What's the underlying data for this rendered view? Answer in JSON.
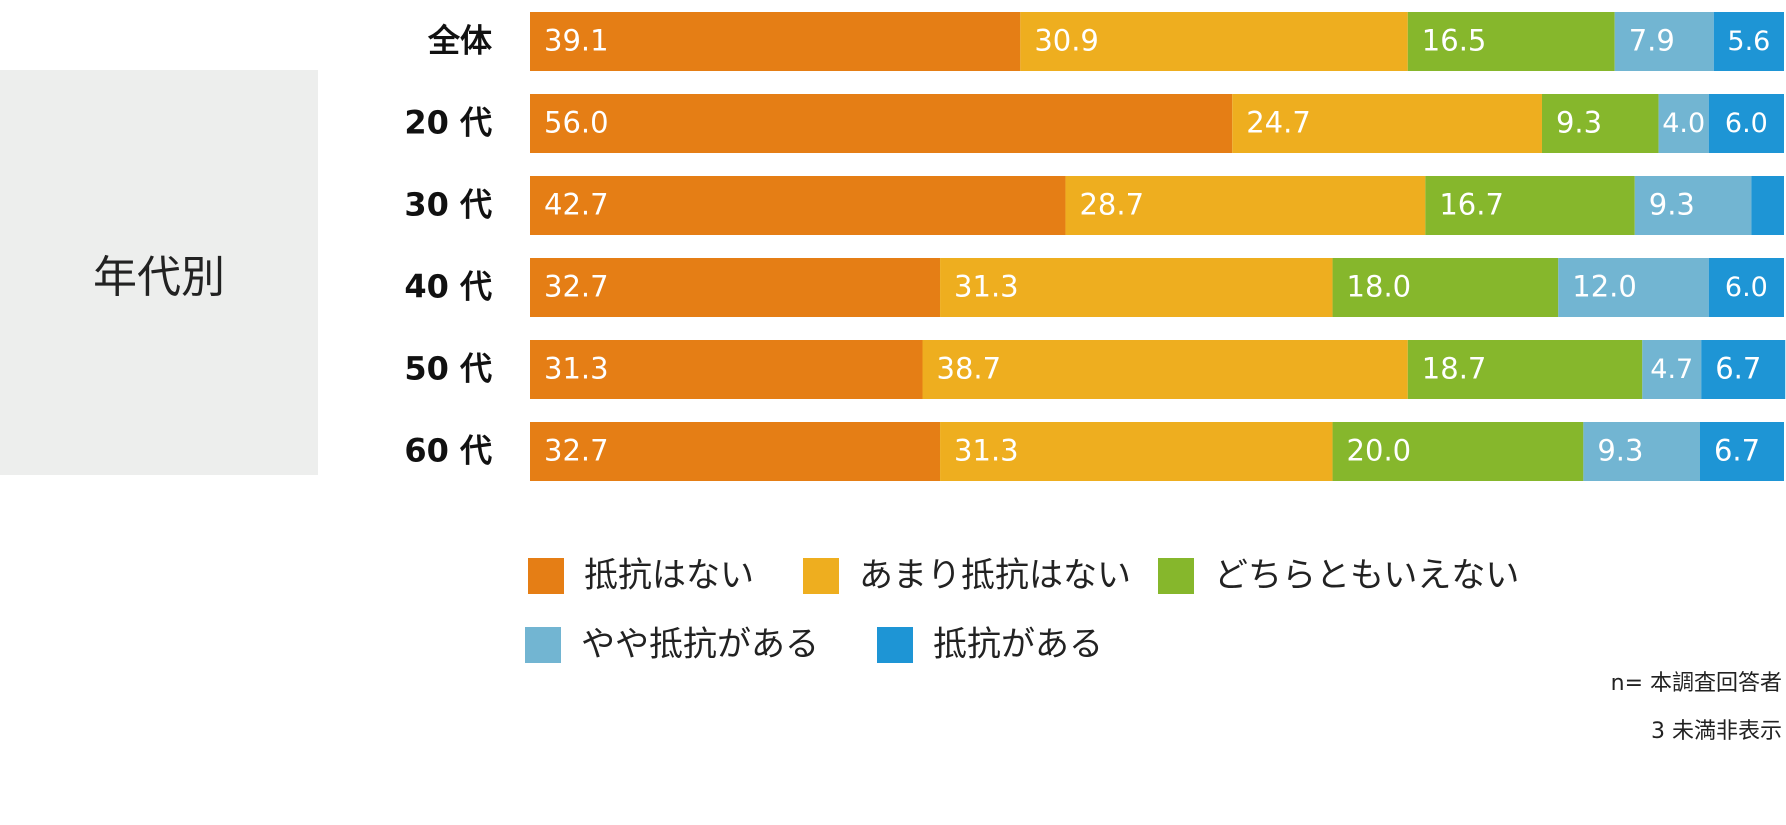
{
  "side_panel": {
    "label": "年代別"
  },
  "notes": {
    "line1": "n= 本調査回答者",
    "line2": "3 未満非表示"
  },
  "chart_data": {
    "type": "bar",
    "orientation": "horizontal",
    "stacked": true,
    "unit": "%",
    "categories": [
      "全体",
      "20 代",
      "30 代",
      "40 代",
      "50 代",
      "60 代"
    ],
    "xlim": [
      0,
      100
    ],
    "grid": false,
    "legend_position": "bottom",
    "series": [
      {
        "name": "抵抗はない",
        "color": "#e57e15",
        "values": [
          39.1,
          56.0,
          42.7,
          32.7,
          31.3,
          32.7
        ],
        "labels": [
          "39.1",
          "56.0",
          "42.7",
          "32.7",
          "31.3",
          "32.7"
        ]
      },
      {
        "name": "あまり抵抗はない",
        "color": "#eeae1f",
        "values": [
          30.9,
          24.7,
          28.7,
          31.3,
          38.7,
          31.3
        ],
        "labels": [
          "30.9",
          "24.7",
          "28.7",
          "31.3",
          "38.7",
          "31.3"
        ]
      },
      {
        "name": "どちらともいえない",
        "color": "#86b72c",
        "values": [
          16.5,
          9.3,
          16.7,
          18.0,
          18.7,
          20.0
        ],
        "labels": [
          "16.5",
          "9.3",
          "16.7",
          "18.0",
          "18.7",
          "20.0"
        ]
      },
      {
        "name": "やや抵抗がある",
        "color": "#72b5d2",
        "values": [
          7.9,
          4.0,
          9.3,
          12.0,
          4.7,
          9.3
        ],
        "labels": [
          "7.9",
          "4.0",
          "9.3",
          "12.0",
          "4.7",
          "9.3"
        ]
      },
      {
        "name": "抵抗がある",
        "color": "#1e95d5",
        "values": [
          5.6,
          6.0,
          2.6,
          6.0,
          6.7,
          6.7
        ],
        "labels": [
          "5.6",
          "6.0",
          "",
          "6.0",
          "6.7",
          "6.7"
        ]
      }
    ]
  }
}
